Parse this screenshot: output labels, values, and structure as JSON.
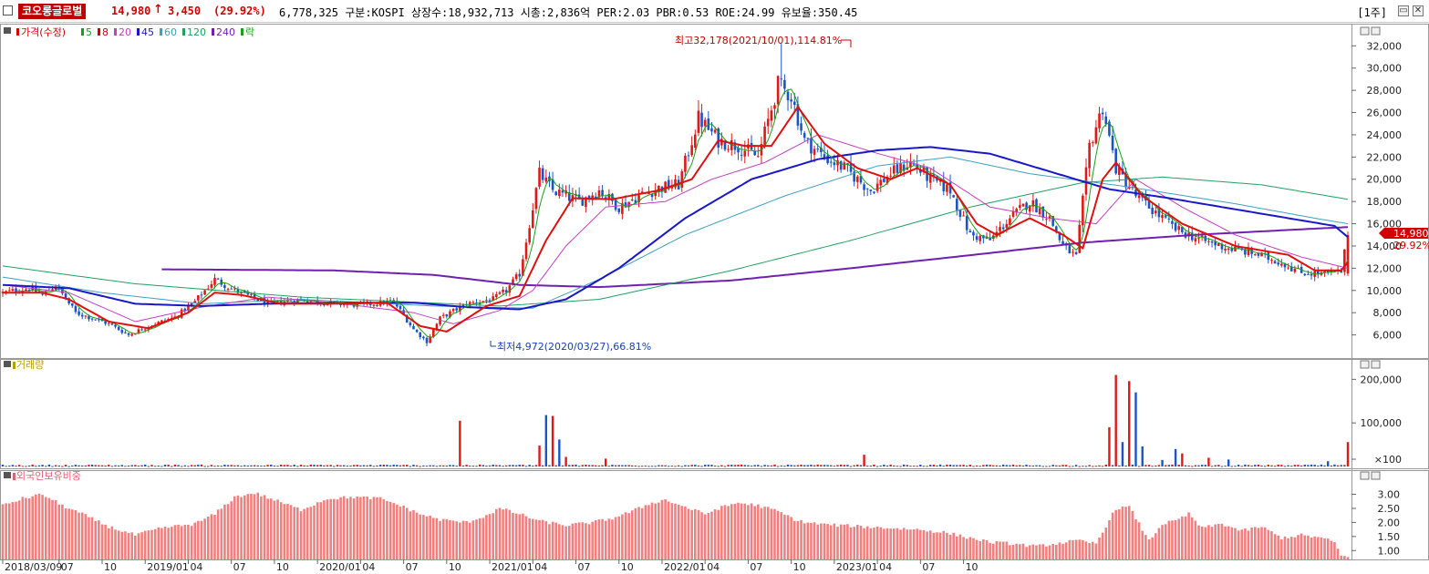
{
  "header": {
    "name": "코오롱글로벌",
    "price": "14,980",
    "arrow": "↑",
    "change": "3,450",
    "change_pct": "(29.92%)",
    "info": "6,778,325  구분:KOSPI 상장수:18,932,713 시총:2,836억 PER:2.03 PBR:0.53 ROE:24.99 유보율:350.45",
    "period": "[1주]"
  },
  "legend_main": [
    {
      "label": "가격(수정)",
      "color": "#d40000"
    },
    {
      "label": "5",
      "color": "#18a018"
    },
    {
      "label": "8",
      "color": "#d40000"
    },
    {
      "label": "20",
      "color": "#c040c0"
    },
    {
      "label": "45",
      "color": "#1818c8"
    },
    {
      "label": "60",
      "color": "#40a0c0"
    },
    {
      "label": "120",
      "color": "#20a060"
    },
    {
      "label": "240",
      "color": "#7020b0"
    },
    {
      "label": "락",
      "color": "#18a018"
    }
  ],
  "legend_volume": {
    "label": "거래량",
    "color": "#b8a000"
  },
  "legend_foreign": {
    "label": "외국인보유비중",
    "color": "#e06070"
  },
  "annotations": {
    "high": "최고32,178(2021/10/01),114.81%",
    "low": "최저4,972(2020/03/27),66.81%"
  },
  "current_tag": {
    "price": "14,980",
    "pct": "29.92%"
  },
  "chart_data": [
    {
      "type": "candlestick",
      "title": "가격(수정)",
      "y_ticks": [
        6000,
        8000,
        10000,
        12000,
        14000,
        16000,
        18000,
        20000,
        22000,
        24000,
        26000,
        28000,
        30000,
        32000
      ],
      "y_tick_labels": [
        "6,000",
        "8,000",
        "10,000",
        "12,000",
        "14,000",
        "16,000",
        "18,000",
        "20,000",
        "22,000",
        "24,000",
        "26,000",
        "28,000",
        "30,000",
        "32,000"
      ],
      "ylim": [
        4000,
        33500
      ],
      "x_tick_labels": [
        "2018/03/09",
        "07",
        "10",
        "2019/01",
        "04",
        "07",
        "10",
        "2020/01",
        "04",
        "07",
        "10",
        "2021/01",
        "04",
        "07",
        "10",
        "2022/01",
        "04",
        "07",
        "10",
        "2023/01",
        "04",
        "07",
        "10"
      ],
      "high_point": {
        "date": "2021/10/01",
        "value": 32178
      },
      "low_point": {
        "date": "2020/03/27",
        "value": 4972
      },
      "last_close": 14980,
      "price_path": [
        [
          0,
          9800
        ],
        [
          8,
          10200
        ],
        [
          12,
          9600
        ],
        [
          16,
          10500
        ],
        [
          22,
          8000
        ],
        [
          32,
          7000
        ],
        [
          38,
          6000
        ],
        [
          44,
          6800
        ],
        [
          52,
          7600
        ],
        [
          58,
          9000
        ],
        [
          64,
          11000
        ],
        [
          70,
          10000
        ],
        [
          80,
          8800
        ],
        [
          90,
          9200
        ],
        [
          100,
          8800
        ],
        [
          108,
          8700
        ],
        [
          118,
          9000
        ],
        [
          124,
          6500
        ],
        [
          128,
          5400
        ],
        [
          132,
          7500
        ],
        [
          140,
          8800
        ],
        [
          148,
          9200
        ],
        [
          152,
          10000
        ],
        [
          156,
          11500
        ],
        [
          162,
          20500
        ],
        [
          166,
          19000
        ],
        [
          174,
          18000
        ],
        [
          180,
          19000
        ],
        [
          186,
          17500
        ],
        [
          192,
          18500
        ],
        [
          198,
          19200
        ],
        [
          204,
          19500
        ],
        [
          210,
          25500
        ],
        [
          216,
          23500
        ],
        [
          222,
          23000
        ],
        [
          228,
          22000
        ],
        [
          234,
          28500
        ],
        [
          238,
          27500
        ],
        [
          242,
          23500
        ],
        [
          248,
          22000
        ],
        [
          254,
          21000
        ],
        [
          262,
          19000
        ],
        [
          268,
          20500
        ],
        [
          274,
          21500
        ],
        [
          280,
          20000
        ],
        [
          286,
          19000
        ],
        [
          292,
          15000
        ],
        [
          298,
          14500
        ],
        [
          304,
          16500
        ],
        [
          310,
          18000
        ],
        [
          316,
          16500
        ],
        [
          320,
          14000
        ],
        [
          324,
          13000
        ],
        [
          328,
          23000
        ],
        [
          332,
          26500
        ],
        [
          336,
          21000
        ],
        [
          342,
          18500
        ],
        [
          348,
          17000
        ],
        [
          354,
          15500
        ],
        [
          362,
          14500
        ],
        [
          370,
          13800
        ],
        [
          378,
          13300
        ],
        [
          386,
          12500
        ],
        [
          392,
          11600
        ],
        [
          400,
          11500
        ],
        [
          404,
          11700
        ],
        [
          406,
          14980
        ]
      ],
      "ma_8_path": [
        [
          0,
          9800
        ],
        [
          12,
          9800
        ],
        [
          20,
          9200
        ],
        [
          32,
          7200
        ],
        [
          44,
          6600
        ],
        [
          56,
          8000
        ],
        [
          64,
          9800
        ],
        [
          72,
          9600
        ],
        [
          84,
          8800
        ],
        [
          100,
          8800
        ],
        [
          116,
          8900
        ],
        [
          126,
          6800
        ],
        [
          134,
          6300
        ],
        [
          146,
          8600
        ],
        [
          156,
          9500
        ],
        [
          164,
          14500
        ],
        [
          172,
          18300
        ],
        [
          184,
          18200
        ],
        [
          198,
          19000
        ],
        [
          208,
          20000
        ],
        [
          216,
          23500
        ],
        [
          224,
          23000
        ],
        [
          232,
          23000
        ],
        [
          240,
          26500
        ],
        [
          248,
          23200
        ],
        [
          258,
          21000
        ],
        [
          268,
          20000
        ],
        [
          276,
          21000
        ],
        [
          286,
          19500
        ],
        [
          294,
          16000
        ],
        [
          300,
          15000
        ],
        [
          310,
          16500
        ],
        [
          320,
          15000
        ],
        [
          326,
          13800
        ],
        [
          332,
          20000
        ],
        [
          336,
          21500
        ],
        [
          344,
          18500
        ],
        [
          356,
          16000
        ],
        [
          372,
          14000
        ],
        [
          388,
          13200
        ],
        [
          396,
          11800
        ],
        [
          404,
          11800
        ],
        [
          406,
          12500
        ]
      ],
      "ma_20_path": [
        [
          0,
          10500
        ],
        [
          20,
          9800
        ],
        [
          40,
          7200
        ],
        [
          60,
          8500
        ],
        [
          80,
          9400
        ],
        [
          100,
          8900
        ],
        [
          124,
          8000
        ],
        [
          136,
          7000
        ],
        [
          150,
          8200
        ],
        [
          160,
          10000
        ],
        [
          170,
          14000
        ],
        [
          182,
          17500
        ],
        [
          200,
          18000
        ],
        [
          214,
          20000
        ],
        [
          230,
          21500
        ],
        [
          246,
          24000
        ],
        [
          262,
          22500
        ],
        [
          280,
          21000
        ],
        [
          298,
          17500
        ],
        [
          316,
          16500
        ],
        [
          330,
          16000
        ],
        [
          342,
          20000
        ],
        [
          356,
          17500
        ],
        [
          372,
          15000
        ],
        [
          392,
          13000
        ],
        [
          406,
          12000
        ]
      ],
      "ma_45_path": [
        [
          0,
          10500
        ],
        [
          20,
          10200
        ],
        [
          40,
          8800
        ],
        [
          60,
          8600
        ],
        [
          80,
          8800
        ],
        [
          100,
          8900
        ],
        [
          124,
          8900
        ],
        [
          140,
          8500
        ],
        [
          156,
          8300
        ],
        [
          170,
          9200
        ],
        [
          186,
          12000
        ],
        [
          206,
          16500
        ],
        [
          226,
          20000
        ],
        [
          246,
          21800
        ],
        [
          264,
          22600
        ],
        [
          280,
          22900
        ],
        [
          298,
          22300
        ],
        [
          316,
          20700
        ],
        [
          334,
          19100
        ],
        [
          352,
          18300
        ],
        [
          372,
          17300
        ],
        [
          392,
          16300
        ],
        [
          402,
          15800
        ],
        [
          406,
          14800
        ]
      ],
      "ma_60_path": [
        [
          0,
          11200
        ],
        [
          30,
          9800
        ],
        [
          60,
          8800
        ],
        [
          90,
          9200
        ],
        [
          130,
          8600
        ],
        [
          160,
          8400
        ],
        [
          180,
          11000
        ],
        [
          206,
          15000
        ],
        [
          236,
          18500
        ],
        [
          264,
          21200
        ],
        [
          286,
          22000
        ],
        [
          310,
          20500
        ],
        [
          340,
          19300
        ],
        [
          372,
          17800
        ],
        [
          396,
          16500
        ],
        [
          406,
          16000
        ]
      ],
      "ma_120_path": [
        [
          0,
          12200
        ],
        [
          40,
          10600
        ],
        [
          90,
          9400
        ],
        [
          150,
          8600
        ],
        [
          180,
          9200
        ],
        [
          220,
          11800
        ],
        [
          256,
          14500
        ],
        [
          292,
          17500
        ],
        [
          326,
          19700
        ],
        [
          350,
          20200
        ],
        [
          380,
          19500
        ],
        [
          406,
          18200
        ]
      ],
      "ma_240_path": [
        [
          48,
          11900
        ],
        [
          100,
          11800
        ],
        [
          130,
          11400
        ],
        [
          156,
          10500
        ],
        [
          180,
          10300
        ],
        [
          220,
          10900
        ],
        [
          256,
          12000
        ],
        [
          296,
          13300
        ],
        [
          326,
          14300
        ],
        [
          360,
          15000
        ],
        [
          392,
          15500
        ],
        [
          406,
          15700
        ]
      ]
    },
    {
      "type": "bar",
      "title": "거래량",
      "y_ticks": [
        100000,
        200000
      ],
      "y_tick_labels": [
        "×100",
        "100,000",
        "200,000"
      ],
      "unit": "×100",
      "ylim": [
        0,
        230000
      ],
      "baseline": 2500,
      "spikes": [
        [
          138,
          105000,
          "up"
        ],
        [
          162,
          48000,
          "up"
        ],
        [
          164,
          118000,
          "down"
        ],
        [
          166,
          116000,
          "up"
        ],
        [
          168,
          62000,
          "down"
        ],
        [
          170,
          22000,
          "up"
        ],
        [
          182,
          18000,
          "up"
        ],
        [
          260,
          27000,
          "up"
        ],
        [
          334,
          90000,
          "up"
        ],
        [
          336,
          210000,
          "up"
        ],
        [
          338,
          56000,
          "down"
        ],
        [
          340,
          196000,
          "up"
        ],
        [
          342,
          170000,
          "down"
        ],
        [
          344,
          46000,
          "down"
        ],
        [
          350,
          15000,
          "down"
        ],
        [
          354,
          40000,
          "down"
        ],
        [
          356,
          30000,
          "up"
        ],
        [
          364,
          20000,
          "up"
        ],
        [
          370,
          16000,
          "down"
        ],
        [
          400,
          12000,
          "down"
        ],
        [
          406,
          56000,
          "up"
        ]
      ]
    },
    {
      "type": "bar",
      "title": "외국인보유비중",
      "y_ticks": [
        1.0,
        1.5,
        2.0,
        2.5,
        3.0
      ],
      "y_tick_labels": [
        "1.00",
        "1.50",
        "2.00",
        "2.50",
        "3.00"
      ],
      "ylim": [
        0.75,
        3.6
      ],
      "path": [
        [
          0,
          2.6
        ],
        [
          6,
          2.85
        ],
        [
          12,
          3.0
        ],
        [
          18,
          2.6
        ],
        [
          24,
          2.3
        ],
        [
          32,
          1.85
        ],
        [
          40,
          1.55
        ],
        [
          48,
          1.8
        ],
        [
          58,
          1.95
        ],
        [
          64,
          2.3
        ],
        [
          70,
          2.9
        ],
        [
          76,
          3.05
        ],
        [
          82,
          2.8
        ],
        [
          90,
          2.45
        ],
        [
          98,
          2.85
        ],
        [
          106,
          2.9
        ],
        [
          114,
          2.85
        ],
        [
          120,
          2.6
        ],
        [
          126,
          2.3
        ],
        [
          132,
          2.1
        ],
        [
          140,
          2.0
        ],
        [
          146,
          2.25
        ],
        [
          150,
          2.5
        ],
        [
          156,
          2.3
        ],
        [
          162,
          2.05
        ],
        [
          170,
          1.9
        ],
        [
          178,
          2.0
        ],
        [
          184,
          2.15
        ],
        [
          190,
          2.4
        ],
        [
          196,
          2.7
        ],
        [
          200,
          2.8
        ],
        [
          206,
          2.55
        ],
        [
          212,
          2.3
        ],
        [
          216,
          2.5
        ],
        [
          222,
          2.7
        ],
        [
          228,
          2.6
        ],
        [
          234,
          2.4
        ],
        [
          240,
          2.05
        ],
        [
          246,
          1.95
        ],
        [
          252,
          1.9
        ],
        [
          260,
          1.85
        ],
        [
          268,
          1.8
        ],
        [
          276,
          1.75
        ],
        [
          284,
          1.65
        ],
        [
          292,
          1.45
        ],
        [
          298,
          1.3
        ],
        [
          304,
          1.25
        ],
        [
          312,
          1.15
        ],
        [
          318,
          1.25
        ],
        [
          324,
          1.35
        ],
        [
          330,
          1.25
        ],
        [
          336,
          2.5
        ],
        [
          340,
          2.55
        ],
        [
          346,
          1.35
        ],
        [
          350,
          1.95
        ],
        [
          354,
          2.05
        ],
        [
          358,
          2.3
        ],
        [
          362,
          1.8
        ],
        [
          368,
          1.95
        ],
        [
          374,
          1.7
        ],
        [
          380,
          1.85
        ],
        [
          386,
          1.45
        ],
        [
          392,
          1.55
        ],
        [
          398,
          1.45
        ],
        [
          402,
          1.3
        ],
        [
          404,
          0.8
        ],
        [
          406,
          0.8
        ]
      ]
    }
  ]
}
